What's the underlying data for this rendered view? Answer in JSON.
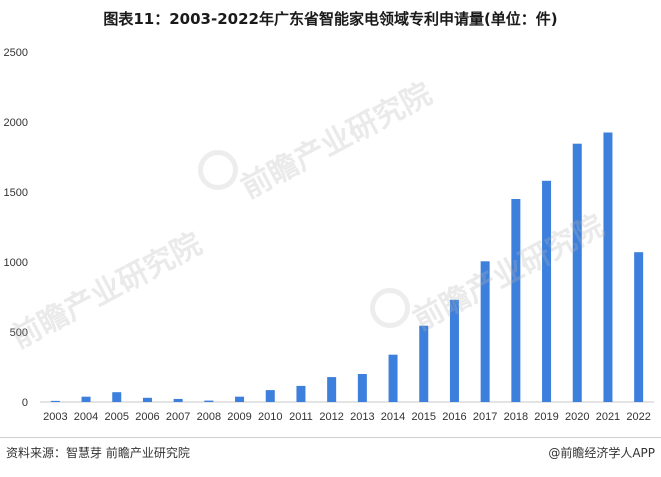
{
  "chart_data": {
    "type": "bar",
    "title": "图表11：2003-2022年广东省智能家电领域专利申请量(单位：件)",
    "xlabel": "",
    "ylabel": "",
    "ylim": [
      0,
      2500
    ],
    "y_ticks": [
      "0",
      "500",
      "1000",
      "1500",
      "2000",
      "2500"
    ],
    "categories": [
      "2003",
      "2004",
      "2005",
      "2006",
      "2007",
      "2008",
      "2009",
      "2010",
      "2011",
      "2012",
      "2013",
      "2014",
      "2015",
      "2016",
      "2017",
      "2018",
      "2019",
      "2020",
      "2021",
      "2022"
    ],
    "values": [
      8,
      38,
      70,
      30,
      22,
      10,
      38,
      85,
      115,
      178,
      200,
      338,
      545,
      730,
      1005,
      1450,
      1580,
      1845,
      1925,
      1070
    ],
    "bar_color": "#3d7fdc",
    "grid": false,
    "legend": "none"
  },
  "watermarks": [
    "前瞻产业研究院",
    "前瞻产业研究院",
    "前瞻产业研究院"
  ],
  "footer": {
    "source": "资料来源：智慧芽 前瞻产业研究院",
    "brand": "@前瞻经济学人APP"
  }
}
